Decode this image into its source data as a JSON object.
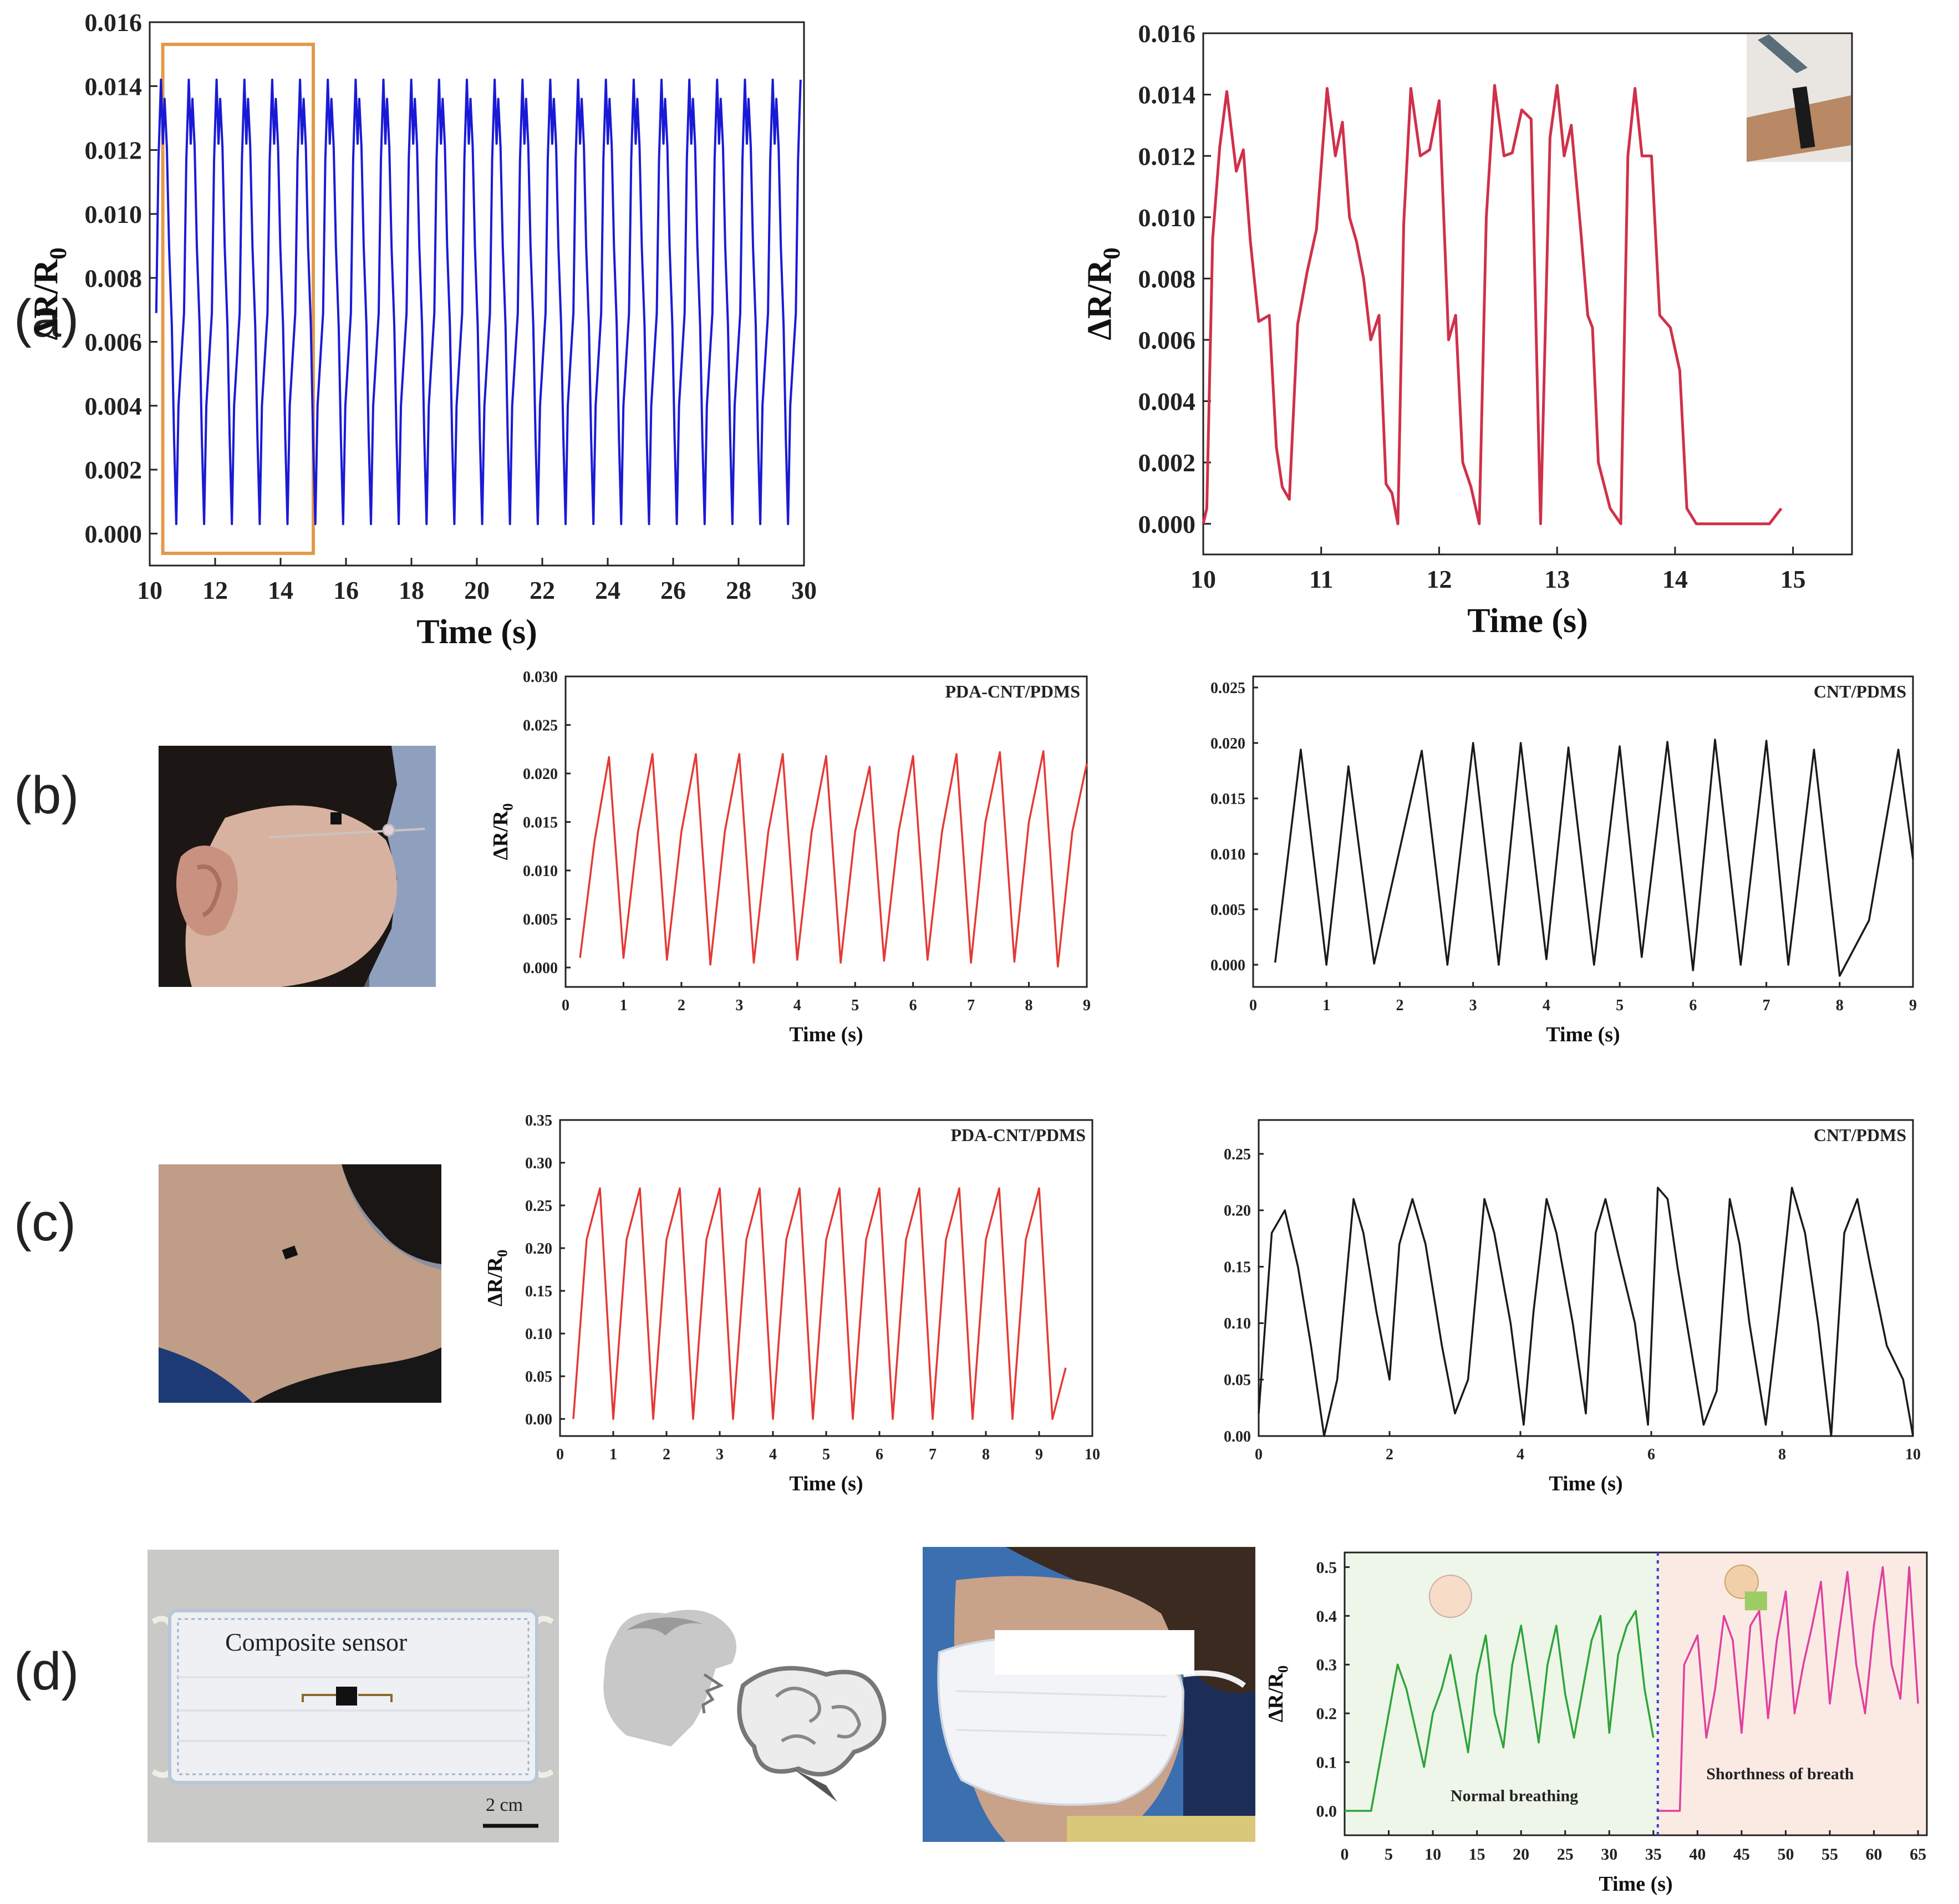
{
  "panel_labels": {
    "a": "(a)",
    "b": "(b)",
    "c": "(c)",
    "d": "(d)"
  },
  "photos": {
    "d_mask_label": "Composite sensor",
    "d_scale_bar": "2 cm"
  },
  "colors": {
    "blue": "#1a1ad6",
    "red_a": "#d0304a",
    "red": "#e53935",
    "black": "#1a1a1a",
    "green": "#2ea43a",
    "pink": "#e040a0",
    "highlight_box": "#e39a4a"
  },
  "chart_data": [
    {
      "id": "a_left",
      "type": "line",
      "xlabel": "Time (s)",
      "ylabel": "ΔR/R0",
      "xlim": [
        10,
        30
      ],
      "ylim": [
        -0.001,
        0.016
      ],
      "xticks": [
        10,
        12,
        14,
        16,
        18,
        20,
        22,
        24,
        26,
        28,
        30
      ],
      "xtick_labels": [
        "10",
        "12",
        "14",
        "16",
        "18",
        "20",
        "22",
        "24",
        "26",
        "28",
        "30"
      ],
      "yticks": [
        0,
        0.002,
        0.004,
        0.006,
        0.008,
        0.01,
        0.012,
        0.014,
        0.016
      ],
      "ytick_labels": [
        "0.000",
        "0.002",
        "0.004",
        "0.006",
        "0.008",
        "0.010",
        "0.012",
        "0.014",
        "0.016"
      ],
      "highlight_range": [
        10.4,
        15.0
      ],
      "series": [
        {
          "color": "#1a1ad6",
          "period": 0.85,
          "phase": 10.2,
          "profile": [
            [
              0,
              0.0069
            ],
            [
              0.08,
              0.0117
            ],
            [
              0.17,
              0.0142
            ],
            [
              0.24,
              0.0122
            ],
            [
              0.3,
              0.0136
            ],
            [
              0.38,
              0.0121
            ],
            [
              0.46,
              0.009
            ],
            [
              0.56,
              0.0065
            ],
            [
              0.64,
              0.003
            ],
            [
              0.72,
              0.0003
            ],
            [
              0.8,
              0.004
            ],
            [
              1.0,
              0.0069
            ]
          ],
          "x_start": 10.2,
          "x_end": 29.9
        }
      ]
    },
    {
      "id": "a_right",
      "type": "line",
      "xlabel": "Time (s)",
      "ylabel": "ΔR/R0",
      "xlim": [
        10,
        15.5
      ],
      "ylim": [
        -0.001,
        0.016
      ],
      "xticks": [
        10,
        11,
        12,
        13,
        14,
        15
      ],
      "xtick_labels": [
        "10",
        "11",
        "12",
        "13",
        "14",
        "15"
      ],
      "yticks": [
        0,
        0.002,
        0.004,
        0.006,
        0.008,
        0.01,
        0.012,
        0.014,
        0.016
      ],
      "ytick_labels": [
        "0.000",
        "0.002",
        "0.004",
        "0.006",
        "0.008",
        "0.010",
        "0.012",
        "0.014",
        "0.016"
      ],
      "series": [
        {
          "color": "#d0304a",
          "x": [
            10.0,
            10.03,
            10.08,
            10.14,
            10.2,
            10.28,
            10.34,
            10.4,
            10.47,
            10.56,
            10.62,
            10.67,
            10.73,
            10.8,
            10.88,
            10.96,
            11.05,
            11.12,
            11.18,
            11.24,
            11.3,
            11.36,
            11.42,
            11.49,
            11.55,
            11.6,
            11.65,
            11.7,
            11.76,
            11.84,
            11.92,
            12.0,
            12.08,
            12.14,
            12.2,
            12.27,
            12.34,
            12.4,
            12.47,
            12.55,
            12.62,
            12.7,
            12.78,
            12.86,
            12.94,
            13.0,
            13.06,
            13.12,
            13.2,
            13.26,
            13.3,
            13.35,
            13.45,
            13.54,
            13.6,
            13.66,
            13.72,
            13.8,
            13.87,
            13.96,
            14.04,
            14.1,
            14.18,
            14.25,
            14.3,
            14.36,
            14.42,
            14.5,
            14.6,
            14.67,
            14.74,
            14.8,
            14.9
          ],
          "y": [
            0.0,
            0.0005,
            0.0093,
            0.0123,
            0.0141,
            0.0115,
            0.0122,
            0.0092,
            0.0066,
            0.0068,
            0.0025,
            0.0012,
            0.0008,
            0.0065,
            0.0082,
            0.0096,
            0.0142,
            0.012,
            0.0131,
            0.01,
            0.0092,
            0.008,
            0.006,
            0.0068,
            0.0013,
            0.001,
            0.0,
            0.0098,
            0.0142,
            0.012,
            0.0122,
            0.0138,
            0.006,
            0.0068,
            0.002,
            0.0012,
            0.0,
            0.01,
            0.0143,
            0.012,
            0.0121,
            0.0135,
            0.0132,
            0.0,
            0.0126,
            0.0143,
            0.012,
            0.013,
            0.0096,
            0.0068,
            0.0064,
            0.002,
            0.0005,
            0.0,
            0.012,
            0.0142,
            0.012,
            0.012,
            0.0068,
            0.0064,
            0.005,
            0.0005,
            0.0,
            0.0,
            0.0,
            0.0,
            0.0,
            0.0,
            0.0,
            0.0,
            0.0,
            0.0,
            0.0005
          ]
        }
      ],
      "inset_photo": true
    },
    {
      "id": "b_left",
      "type": "line",
      "title": "PDA-CNT/PDMS",
      "xlabel": "Time (s)",
      "ylabel": "ΔR/R0",
      "xlim": [
        0,
        9
      ],
      "ylim": [
        -0.002,
        0.03
      ],
      "xticks": [
        0,
        1,
        2,
        3,
        4,
        5,
        6,
        7,
        8,
        9
      ],
      "xtick_labels": [
        "0",
        "1",
        "2",
        "3",
        "4",
        "5",
        "6",
        "7",
        "8",
        "9"
      ],
      "yticks": [
        0,
        0.005,
        0.01,
        0.015,
        0.02,
        0.025,
        0.03
      ],
      "ytick_labels": [
        "0.000",
        "0.005",
        "0.010",
        "0.015",
        "0.020",
        "0.025",
        "0.030"
      ],
      "series": [
        {
          "color": "#e53935",
          "x": [
            0.25,
            0.5,
            0.75,
            1.0,
            1.25,
            1.5,
            1.75,
            2.0,
            2.25,
            2.5,
            2.75,
            3.0,
            3.25,
            3.5,
            3.75,
            4.0,
            4.25,
            4.5,
            4.75,
            5.0,
            5.25,
            5.5,
            5.75,
            6.0,
            6.25,
            6.5,
            6.75,
            7.0,
            7.25,
            7.5,
            7.75,
            8.0,
            8.25,
            8.5,
            8.75,
            9.0
          ],
          "y": [
            0.001,
            0.013,
            0.0217,
            0.001,
            0.014,
            0.022,
            0.0008,
            0.014,
            0.022,
            0.0003,
            0.014,
            0.022,
            0.0005,
            0.014,
            0.022,
            0.0008,
            0.014,
            0.0218,
            0.0005,
            0.014,
            0.0207,
            0.0007,
            0.014,
            0.0218,
            0.0008,
            0.014,
            0.022,
            0.0005,
            0.015,
            0.0222,
            0.0006,
            0.015,
            0.0223,
            0.0001,
            0.014,
            0.021
          ]
        }
      ]
    },
    {
      "id": "b_right",
      "type": "line",
      "title": "CNT/PDMS",
      "xlabel": "Time (s)",
      "ylabel": "",
      "xlim": [
        0,
        9
      ],
      "ylim": [
        -0.002,
        0.026
      ],
      "xticks": [
        0,
        1,
        2,
        3,
        4,
        5,
        6,
        7,
        8,
        9
      ],
      "xtick_labels": [
        "0",
        "1",
        "2",
        "3",
        "4",
        "5",
        "6",
        "7",
        "8",
        "9"
      ],
      "yticks": [
        0,
        0.005,
        0.01,
        0.015,
        0.02,
        0.025
      ],
      "ytick_labels": [
        "0.000",
        "0.005",
        "0.010",
        "0.015",
        "0.020",
        "0.025"
      ],
      "series": [
        {
          "color": "#1a1a1a",
          "x": [
            0.3,
            0.65,
            1.0,
            1.3,
            1.65,
            2.3,
            2.65,
            3.0,
            3.35,
            3.65,
            4.0,
            4.3,
            4.65,
            5.0,
            5.3,
            5.65,
            6.0,
            6.3,
            6.65,
            7.0,
            7.3,
            7.65,
            8.0,
            8.4,
            8.8,
            9.0
          ],
          "y": [
            0.0002,
            0.0194,
            0.0,
            0.0179,
            0.0001,
            0.0193,
            0.0,
            0.02,
            0.0,
            0.02,
            0.0005,
            0.0196,
            0.0,
            0.0197,
            0.0007,
            0.0201,
            -0.0005,
            0.0203,
            0.0,
            0.0202,
            0.0,
            0.0194,
            -0.001,
            0.004,
            0.0194,
            0.0095
          ]
        }
      ]
    },
    {
      "id": "c_left",
      "type": "line",
      "title": "PDA-CNT/PDMS",
      "xlabel": "Time (s)",
      "ylabel": "ΔR/R0",
      "xlim": [
        0,
        10
      ],
      "ylim": [
        -0.02,
        0.35
      ],
      "xticks": [
        0,
        1,
        2,
        3,
        4,
        5,
        6,
        7,
        8,
        9,
        10
      ],
      "xtick_labels": [
        "0",
        "1",
        "2",
        "3",
        "4",
        "5",
        "6",
        "7",
        "8",
        "9",
        "10"
      ],
      "yticks": [
        0,
        0.05,
        0.1,
        0.15,
        0.2,
        0.25,
        0.3,
        0.35
      ],
      "ytick_labels": [
        "0.00",
        "0.05",
        "0.10",
        "0.15",
        "0.20",
        "0.25",
        "0.30",
        "0.35"
      ],
      "series": [
        {
          "color": "#e53935",
          "x": [
            0.25,
            0.5,
            0.75,
            1.0,
            1.25,
            1.5,
            1.75,
            2.0,
            2.25,
            2.5,
            2.75,
            3.0,
            3.25,
            3.5,
            3.75,
            4.0,
            4.25,
            4.5,
            4.75,
            5.0,
            5.25,
            5.5,
            5.75,
            6.0,
            6.25,
            6.5,
            6.75,
            7.0,
            7.25,
            7.5,
            7.75,
            8.0,
            8.25,
            8.5,
            8.75,
            9.0,
            9.25,
            9.5
          ],
          "y": [
            0.0,
            0.21,
            0.27,
            0.0,
            0.21,
            0.27,
            0.0,
            0.21,
            0.27,
            0.0,
            0.21,
            0.27,
            0.0,
            0.21,
            0.27,
            0.0,
            0.21,
            0.27,
            0.0,
            0.21,
            0.27,
            0.0,
            0.21,
            0.27,
            0.0,
            0.21,
            0.27,
            0.0,
            0.21,
            0.27,
            0.0,
            0.21,
            0.27,
            0.0,
            0.21,
            0.27,
            0.0,
            0.06
          ]
        }
      ]
    },
    {
      "id": "c_right",
      "type": "line",
      "title": "CNT/PDMS",
      "xlabel": "Time (s)",
      "ylabel": "",
      "xlim": [
        0,
        10
      ],
      "ylim": [
        0,
        0.28
      ],
      "xticks": [
        0,
        2,
        4,
        6,
        8,
        10
      ],
      "xtick_labels": [
        "0",
        "2",
        "4",
        "6",
        "8",
        "10"
      ],
      "yticks": [
        0,
        0.05,
        0.1,
        0.15,
        0.2,
        0.25
      ],
      "ytick_labels": [
        "0.00",
        "0.05",
        "0.10",
        "0.15",
        "0.20",
        "0.25"
      ],
      "series": [
        {
          "color": "#1a1a1a",
          "x": [
            0.0,
            0.2,
            0.4,
            0.6,
            0.8,
            1.0,
            1.2,
            1.45,
            1.6,
            1.8,
            2.0,
            2.15,
            2.35,
            2.55,
            2.8,
            3.0,
            3.2,
            3.45,
            3.6,
            3.85,
            4.05,
            4.2,
            4.4,
            4.55,
            4.8,
            5.0,
            5.15,
            5.3,
            5.5,
            5.75,
            5.95,
            6.1,
            6.25,
            6.4,
            6.6,
            6.8,
            7.0,
            7.2,
            7.35,
            7.5,
            7.75,
            7.95,
            8.15,
            8.35,
            8.55,
            8.75,
            8.95,
            9.15,
            9.35,
            9.6,
            9.85,
            10.0
          ],
          "y": [
            0.02,
            0.18,
            0.2,
            0.15,
            0.08,
            0.0,
            0.05,
            0.21,
            0.18,
            0.11,
            0.05,
            0.17,
            0.21,
            0.17,
            0.08,
            0.02,
            0.05,
            0.21,
            0.18,
            0.1,
            0.01,
            0.11,
            0.21,
            0.18,
            0.1,
            0.02,
            0.18,
            0.21,
            0.16,
            0.1,
            0.01,
            0.22,
            0.21,
            0.15,
            0.08,
            0.01,
            0.04,
            0.21,
            0.17,
            0.1,
            0.01,
            0.11,
            0.22,
            0.18,
            0.1,
            0.0,
            0.18,
            0.21,
            0.15,
            0.08,
            0.05,
            0.0
          ]
        }
      ]
    },
    {
      "id": "d_right",
      "type": "line",
      "xlabel": "Time (s)",
      "ylabel": "ΔR/R0",
      "xlim": [
        0,
        66
      ],
      "ylim": [
        -0.05,
        0.53
      ],
      "xticks": [
        0,
        5,
        10,
        15,
        20,
        25,
        30,
        35,
        40,
        45,
        50,
        55,
        60,
        65
      ],
      "xtick_labels": [
        "0",
        "5",
        "10",
        "15",
        "20",
        "25",
        "30",
        "35",
        "40",
        "45",
        "50",
        "55",
        "60",
        "65"
      ],
      "yticks": [
        0,
        0.1,
        0.2,
        0.3,
        0.4,
        0.5
      ],
      "ytick_labels": [
        "0.0",
        "0.1",
        "0.2",
        "0.3",
        "0.4",
        "0.5"
      ],
      "divider_x": 35.5,
      "annotations": [
        "Normal breathing",
        "Shorthness of breath"
      ],
      "series": [
        {
          "name": "Normal breathing",
          "color": "#2ea43a",
          "x": [
            0,
            3,
            4,
            5.5,
            6,
            7,
            8,
            9,
            10,
            11,
            12,
            13,
            14,
            15,
            16,
            17,
            18,
            19,
            20,
            21,
            22,
            23,
            24,
            25,
            26,
            27,
            28,
            29,
            30,
            31,
            32,
            33,
            34,
            35
          ],
          "y": [
            0,
            0,
            0.1,
            0.25,
            0.3,
            0.25,
            0.17,
            0.09,
            0.2,
            0.25,
            0.32,
            0.22,
            0.12,
            0.28,
            0.36,
            0.2,
            0.13,
            0.3,
            0.38,
            0.26,
            0.14,
            0.3,
            0.38,
            0.24,
            0.15,
            0.25,
            0.35,
            0.4,
            0.16,
            0.32,
            0.38,
            0.41,
            0.25,
            0.15
          ]
        },
        {
          "name": "Shorthness of breath",
          "color": "#e040a0",
          "x": [
            35.5,
            37,
            38,
            38.5,
            40,
            41,
            42,
            43,
            44,
            45,
            46,
            47,
            48,
            49,
            50,
            51,
            52,
            53,
            54,
            55,
            56,
            57,
            58,
            59,
            60,
            61,
            62,
            63,
            64,
            65
          ],
          "y": [
            0.0,
            0.0,
            0.0,
            0.3,
            0.36,
            0.15,
            0.25,
            0.4,
            0.35,
            0.16,
            0.38,
            0.41,
            0.19,
            0.35,
            0.45,
            0.2,
            0.3,
            0.38,
            0.47,
            0.22,
            0.36,
            0.49,
            0.3,
            0.2,
            0.38,
            0.5,
            0.3,
            0.23,
            0.5,
            0.22
          ]
        }
      ]
    }
  ]
}
